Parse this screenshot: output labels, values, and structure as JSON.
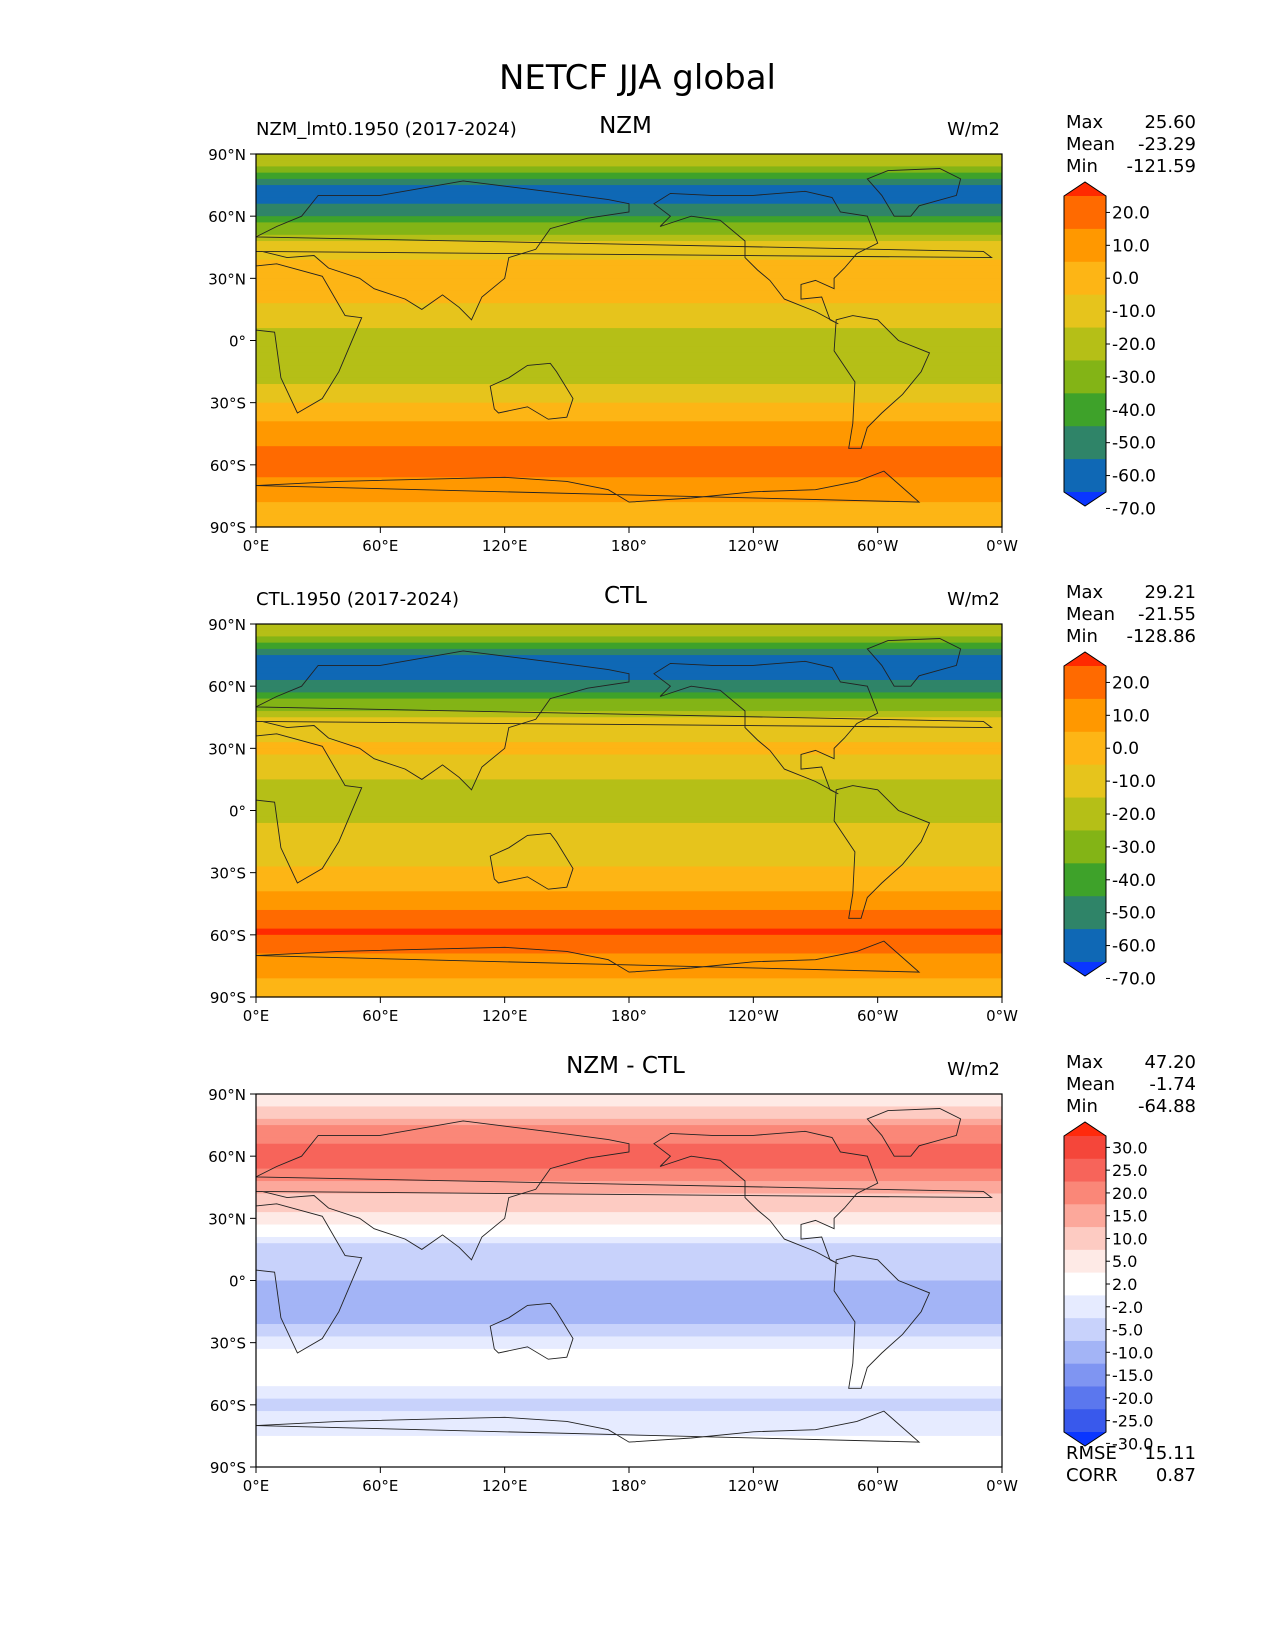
{
  "title": "NETCF JJA global",
  "chart_data": [
    {
      "type": "heatmap",
      "title": "NZM",
      "left_label": "NZM_lmt0.1950 (2017-2024)",
      "units": "W/m2",
      "stats": {
        "max_label": "Max",
        "max": "25.60",
        "mean_label": "Mean",
        "mean": "-23.29",
        "min_label": "Min",
        "min": "-121.59"
      },
      "lat_ticks": [
        "90°N",
        "60°N",
        "30°N",
        "0°",
        "30°S",
        "60°S",
        "90°S"
      ],
      "lon_ticks": [
        "0°E",
        "60°E",
        "120°E",
        "180°",
        "120°W",
        "60°W",
        "0°W"
      ],
      "colorbar_levels": [
        "20.0",
        "10.0",
        "0.0",
        "-10.0",
        "-20.0",
        "-30.0",
        "-40.0",
        "-50.0",
        "-60.0",
        "-70.0"
      ],
      "colorbar_colors": [
        "#ff2a00",
        "#ff6a00",
        "#ff9800",
        "#fdb515",
        "#e6c41c",
        "#b5bf17",
        "#83b416",
        "#3ea22a",
        "#2f8468",
        "#0f68b5",
        "#0a36ff"
      ],
      "zonal_profile": [
        {
          "lat": 85,
          "value": -28
        },
        {
          "lat": 72,
          "value": -70
        },
        {
          "lat": 58,
          "value": -45
        },
        {
          "lat": 45,
          "value": -15
        },
        {
          "lat": 30,
          "value": -5
        },
        {
          "lat": 15,
          "value": -12
        },
        {
          "lat": 0,
          "value": -28
        },
        {
          "lat": -15,
          "value": -30
        },
        {
          "lat": -30,
          "value": -10
        },
        {
          "lat": -45,
          "value": 5
        },
        {
          "lat": -58,
          "value": 18
        },
        {
          "lat": -70,
          "value": 5
        },
        {
          "lat": -85,
          "value": -5
        }
      ]
    },
    {
      "type": "heatmap",
      "title": "CTL",
      "left_label": "CTL.1950 (2017-2024)",
      "units": "W/m2",
      "stats": {
        "max_label": "Max",
        "max": "29.21",
        "mean_label": "Mean",
        "mean": "-21.55",
        "min_label": "Min",
        "min": "-128.86"
      },
      "lat_ticks": [
        "90°N",
        "60°N",
        "30°N",
        "0°",
        "30°S",
        "60°S",
        "90°S"
      ],
      "lon_ticks": [
        "0°E",
        "60°E",
        "120°E",
        "180°",
        "120°W",
        "60°W",
        "0°W"
      ],
      "colorbar_levels": [
        "20.0",
        "10.0",
        "0.0",
        "-10.0",
        "-20.0",
        "-30.0",
        "-40.0",
        "-50.0",
        "-60.0",
        "-70.0"
      ],
      "colorbar_colors": [
        "#ff2a00",
        "#ff6a00",
        "#ff9800",
        "#fdb515",
        "#e6c41c",
        "#b5bf17",
        "#83b416",
        "#3ea22a",
        "#2f8468",
        "#0f68b5",
        "#0a36ff"
      ],
      "zonal_profile": [
        {
          "lat": 85,
          "value": -28
        },
        {
          "lat": 72,
          "value": -72
        },
        {
          "lat": 58,
          "value": -50
        },
        {
          "lat": 45,
          "value": -20
        },
        {
          "lat": 30,
          "value": -8
        },
        {
          "lat": 15,
          "value": -20
        },
        {
          "lat": 0,
          "value": -22
        },
        {
          "lat": -15,
          "value": -18
        },
        {
          "lat": -30,
          "value": -8
        },
        {
          "lat": -45,
          "value": 5
        },
        {
          "lat": -58,
          "value": 22
        },
        {
          "lat": -70,
          "value": 8
        },
        {
          "lat": -85,
          "value": -2
        }
      ]
    },
    {
      "type": "heatmap",
      "title": "NZM - CTL",
      "left_label": "",
      "units": "W/m2",
      "stats": {
        "max_label": "Max",
        "max": "47.20",
        "mean_label": "Mean",
        "mean": "-1.74",
        "min_label": "Min",
        "min": "-64.88"
      },
      "extra_stats": {
        "rmse_label": "RMSE",
        "rmse": "15.11",
        "corr_label": "CORR",
        "corr": "0.87"
      },
      "lat_ticks": [
        "90°N",
        "60°N",
        "30°N",
        "0°",
        "30°S",
        "60°S",
        "90°S"
      ],
      "lon_ticks": [
        "0°E",
        "60°E",
        "120°E",
        "180°",
        "120°W",
        "60°W",
        "0°W"
      ],
      "colorbar_levels": [
        "30.0",
        "25.0",
        "20.0",
        "15.0",
        "10.0",
        "5.0",
        "2.0",
        "-2.0",
        "-5.0",
        "-10.0",
        "-15.0",
        "-20.0",
        "-25.0",
        "-30.0"
      ],
      "colorbar_colors": [
        "#ff2a0c",
        "#f5463a",
        "#f7645a",
        "#fa8778",
        "#fca89b",
        "#fdcbc2",
        "#feeae6",
        "#ffffff",
        "#e6ebff",
        "#c8d2fb",
        "#a3b4f6",
        "#7f95f2",
        "#5b77ee",
        "#3959ec",
        "#0a36ff"
      ],
      "zonal_profile": [
        {
          "lat": 85,
          "value": 3
        },
        {
          "lat": 72,
          "value": 18
        },
        {
          "lat": 58,
          "value": 22
        },
        {
          "lat": 45,
          "value": 12
        },
        {
          "lat": 30,
          "value": 3
        },
        {
          "lat": 15,
          "value": -6
        },
        {
          "lat": 0,
          "value": -10
        },
        {
          "lat": -15,
          "value": -15
        },
        {
          "lat": -30,
          "value": -3
        },
        {
          "lat": -45,
          "value": 1
        },
        {
          "lat": -58,
          "value": -6
        },
        {
          "lat": -70,
          "value": -3
        },
        {
          "lat": -85,
          "value": 0
        }
      ]
    }
  ]
}
